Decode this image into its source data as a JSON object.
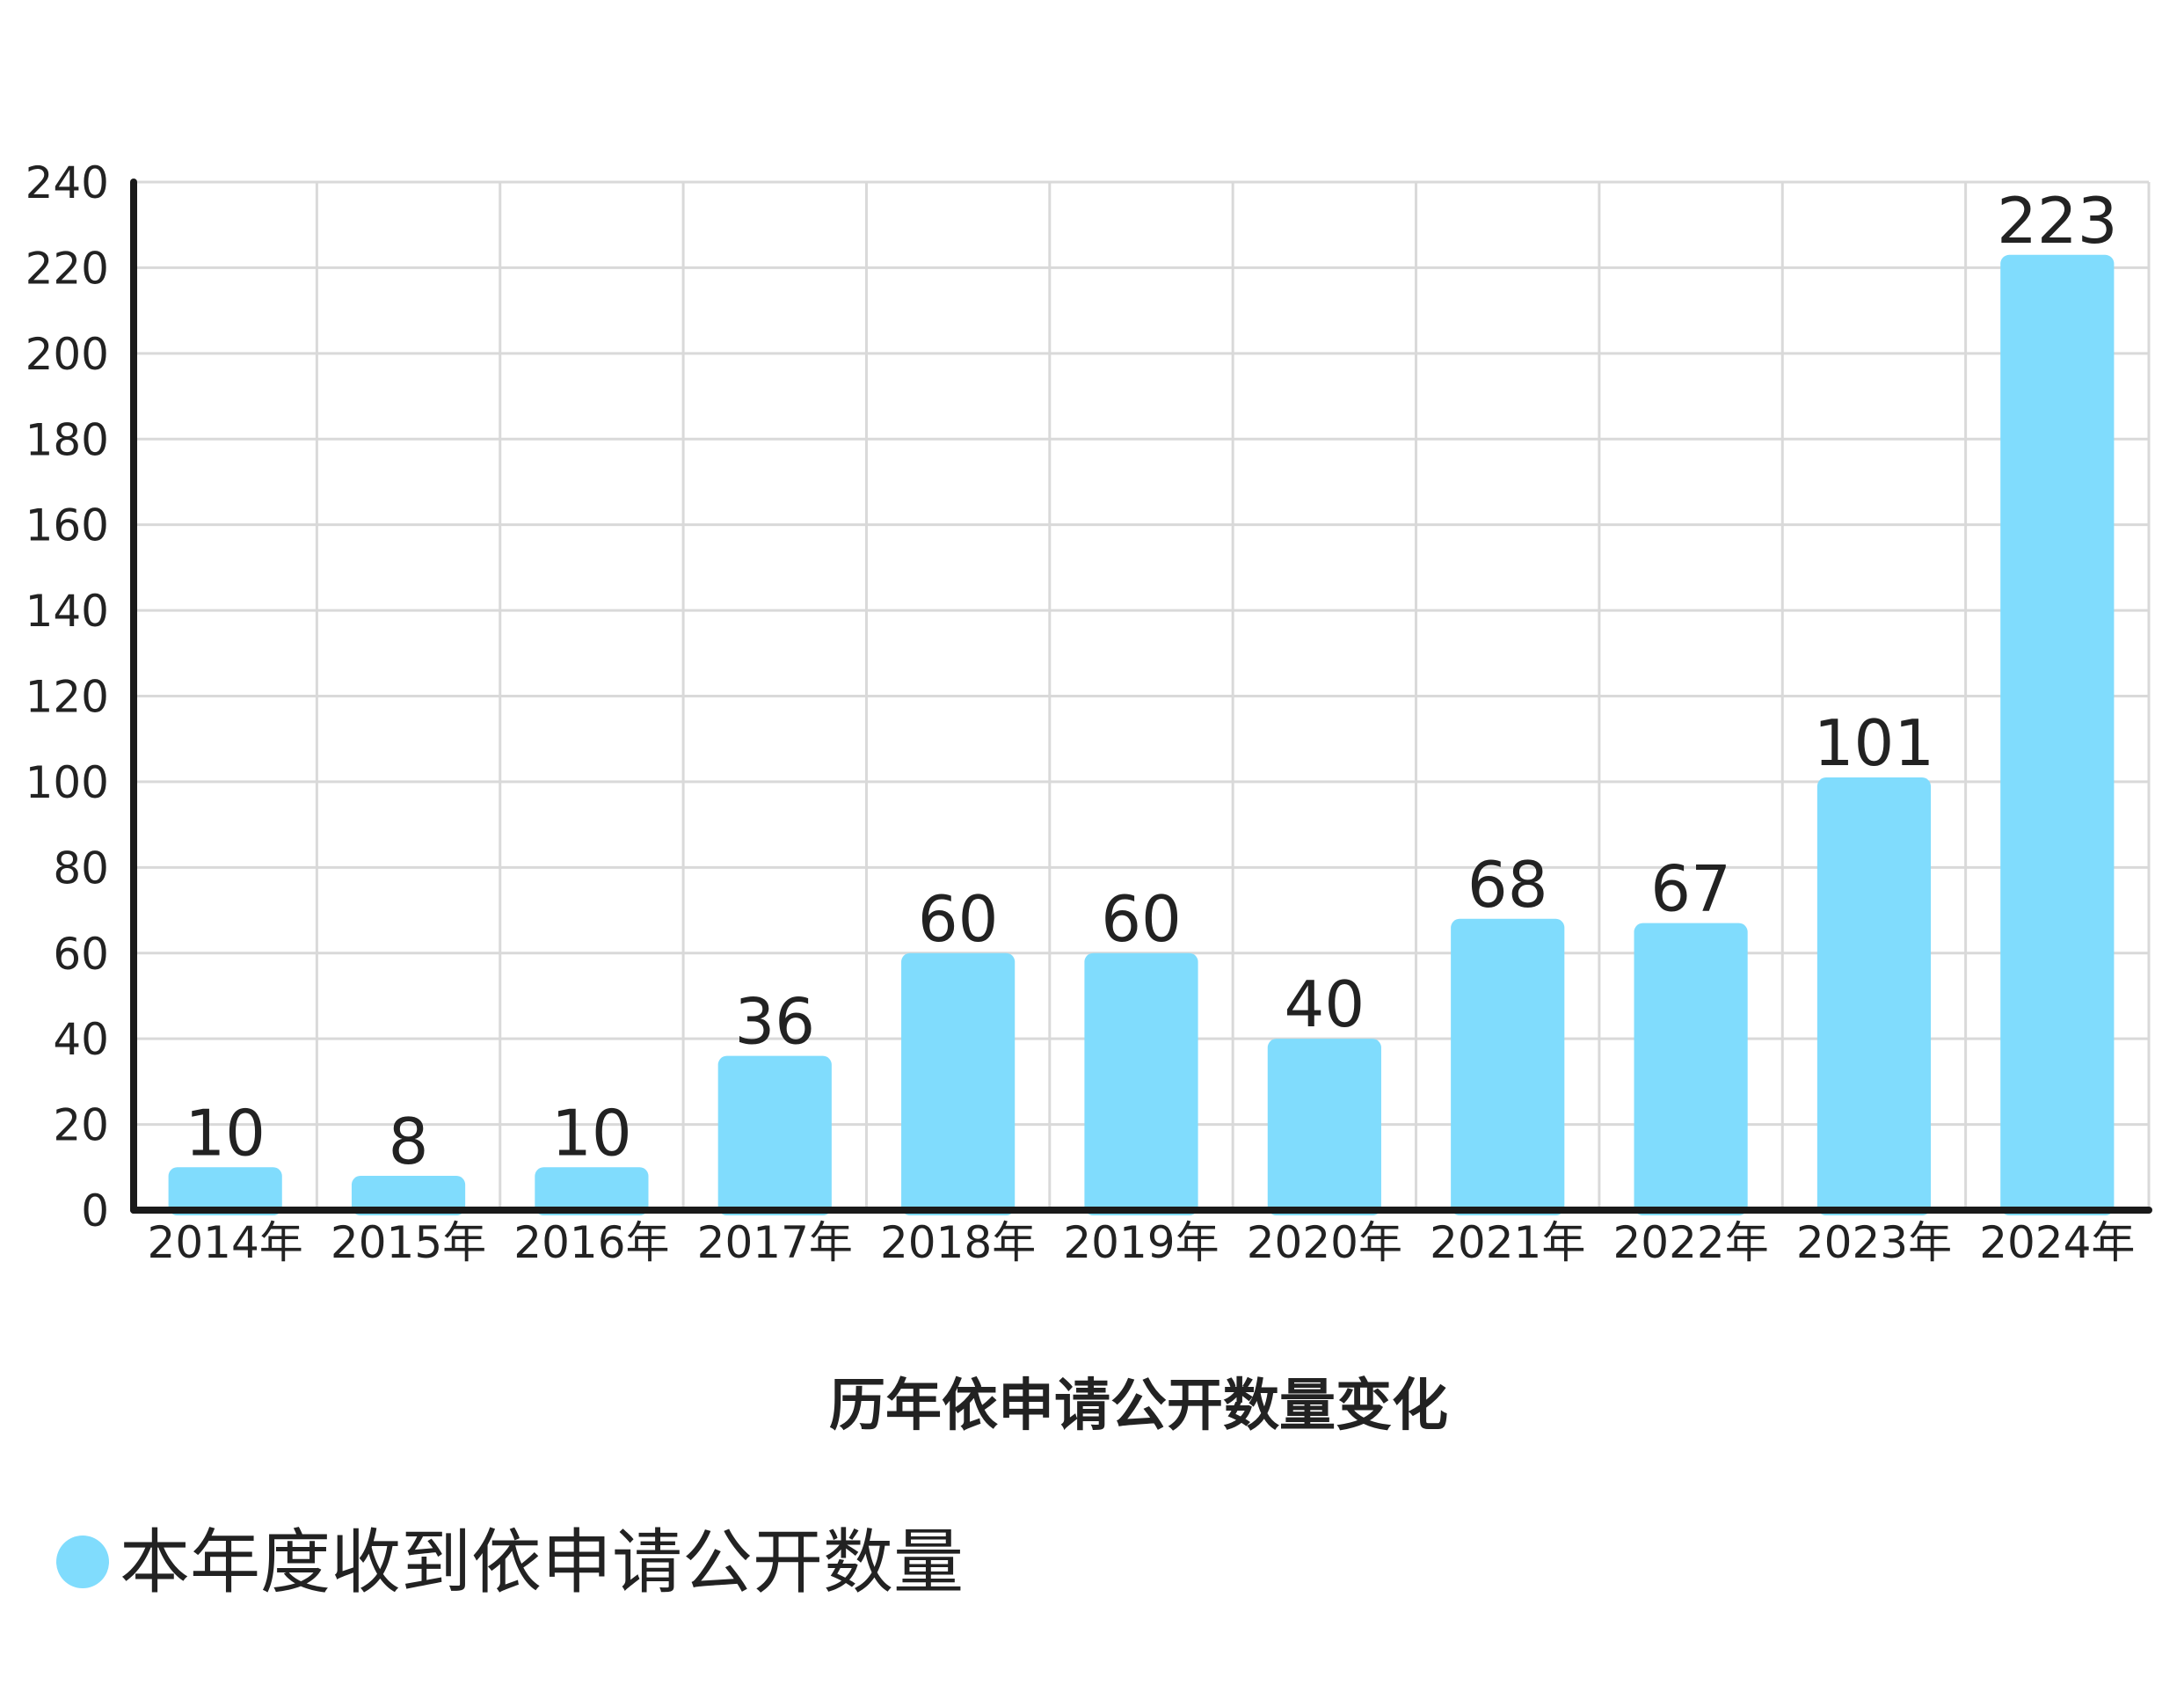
{
  "chart_data": {
    "type": "bar",
    "title": "历年依申请公开数量变化",
    "categories": [
      "2014年",
      "2015年",
      "2016年",
      "2017年",
      "2018年",
      "2019年",
      "2020年",
      "2021年",
      "2022年",
      "2023年",
      "2024年"
    ],
    "series": [
      {
        "name": "本年度收到依申请公开数量",
        "values": [
          10,
          8,
          10,
          36,
          60,
          60,
          40,
          68,
          67,
          101,
          223
        ],
        "color": "#80dcfd"
      }
    ],
    "ylim": [
      0,
      240
    ],
    "yticks": [
      0,
      20,
      40,
      60,
      80,
      100,
      120,
      140,
      160,
      180,
      200,
      220,
      240
    ],
    "grid": true,
    "data_labels": true,
    "legend_position": "bottom-left"
  }
}
